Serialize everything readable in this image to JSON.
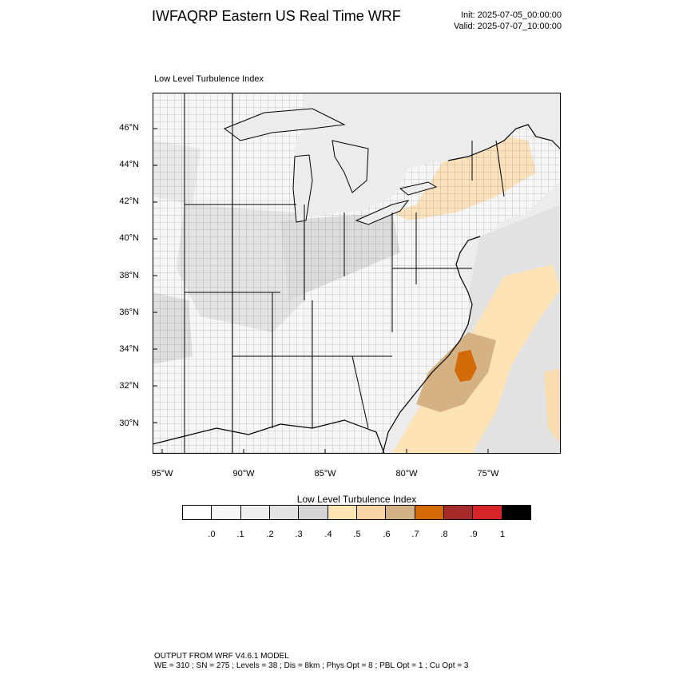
{
  "header": {
    "title": "IWFAQRP Eastern US Real Time WRF",
    "init": "Init: 2025-07-05_00:00:00",
    "valid": "Valid: 2025-07-07_10:00:00"
  },
  "panel": {
    "title": "Low Level Turbulence Index"
  },
  "map": {
    "lat_labels": [
      "46°N",
      "44°N",
      "42°N",
      "40°N",
      "38°N",
      "36°N",
      "34°N",
      "32°N",
      "30°N"
    ],
    "lon_labels": [
      "95°W",
      "90°W",
      "85°W",
      "80°W",
      "75°W"
    ]
  },
  "colorbar": {
    "title": "Low Level Turbulence Index",
    "colors": [
      "#ffffff",
      "#f7f7f7",
      "#efefef",
      "#e3e3e3",
      "#d5d5d5",
      "#ffe4b4",
      "#f8d5a6",
      "#d2b184",
      "#d46a05",
      "#a52c2b",
      "#d6242b",
      "#000000"
    ],
    "labels": [
      ".0",
      ".1",
      ".2",
      ".3",
      ".4",
      ".5",
      ".6",
      ".7",
      ".8",
      ".9",
      "1"
    ]
  },
  "footer": {
    "line1": "OUTPUT FROM WRF V4.6.1 MODEL",
    "line2": "WE = 310 ; SN = 275 ; Levels = 38 ; Dis = 8km ; Phys Opt = 8 ; PBL Opt = 1 ; Cu Opt = 3"
  }
}
